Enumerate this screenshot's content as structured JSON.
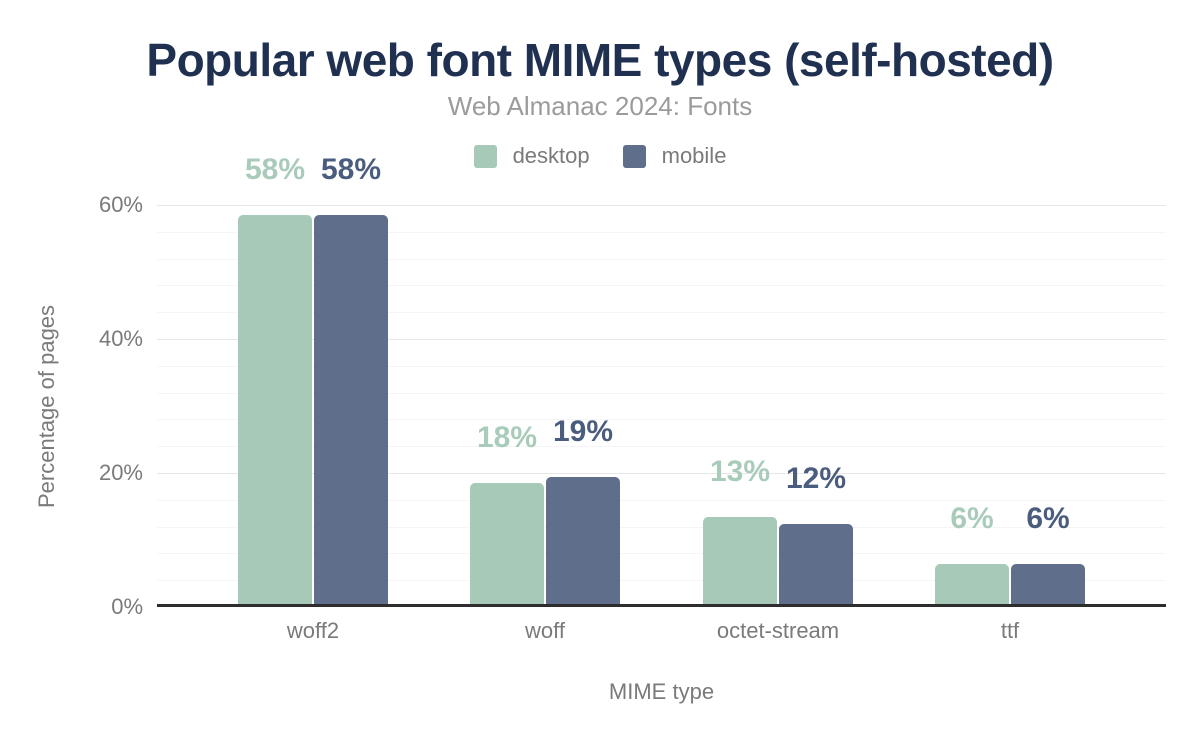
{
  "header": {
    "title": "Popular web font MIME types (self-hosted)",
    "subtitle": "Web Almanac 2024: Fonts"
  },
  "colors": {
    "title": "#1f3050",
    "subtitle": "#9b9b9b",
    "axis_text": "#7a7a7a",
    "axis_line": "#2d2d2d",
    "background": "#ffffff",
    "desktop": "#a7c9b8",
    "mobile": "#5f6e8a"
  },
  "chart_data": {
    "type": "bar",
    "title": "Popular web font MIME types (self-hosted)",
    "subtitle": "Web Almanac 2024: Fonts",
    "xlabel": "MIME type",
    "ylabel": "Percentage of pages",
    "categories": [
      "woff2",
      "woff",
      "octet-stream",
      "ttf"
    ],
    "series": [
      {
        "name": "desktop",
        "color": "#a7c9b8",
        "label_color": "#a9cbba",
        "values": [
          58,
          18,
          13,
          6
        ],
        "labels": [
          "58%",
          "18%",
          "13%",
          "6%"
        ]
      },
      {
        "name": "mobile",
        "color": "#5f6e8a",
        "label_color": "#4b5d7e",
        "values": [
          58,
          19,
          12,
          6
        ],
        "labels": [
          "58%",
          "19%",
          "12%",
          "6%"
        ]
      }
    ],
    "ylim": [
      0,
      60
    ],
    "yticks": [
      {
        "value": 0,
        "label": "0%"
      },
      {
        "value": 20,
        "label": "20%"
      },
      {
        "value": 40,
        "label": "40%"
      },
      {
        "value": 60,
        "label": "60%"
      }
    ],
    "grid": {
      "major_step": 20,
      "minor_step": 4,
      "major_color": "#e7e7e7",
      "minor_color": "#f5f5f5"
    },
    "legend_position": "top-center"
  }
}
